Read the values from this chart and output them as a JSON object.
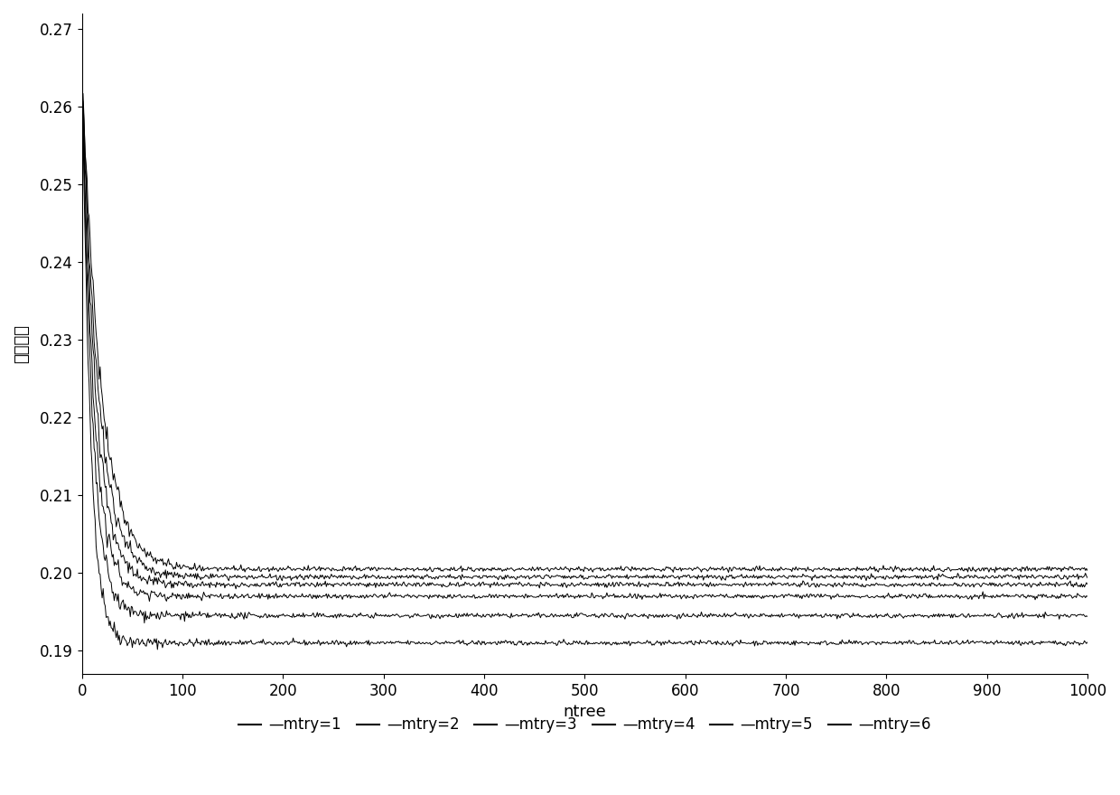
{
  "title": "",
  "xlabel": "ntree",
  "ylabel": "袋外误差",
  "xlim": [
    0,
    1000
  ],
  "ylim": [
    0.187,
    0.272
  ],
  "yticks": [
    0.19,
    0.2,
    0.21,
    0.22,
    0.23,
    0.24,
    0.25,
    0.26,
    0.27
  ],
  "xticks": [
    0,
    100,
    200,
    300,
    400,
    500,
    600,
    700,
    800,
    900,
    1000
  ],
  "line_color": "#000000",
  "background_color": "#ffffff",
  "legend_labels": [
    "mtry=1",
    "mtry=2",
    "mtry=3",
    "mtry=4",
    "mtry=5",
    "mtry=6"
  ],
  "mtry_final_values": [
    0.191,
    0.1945,
    0.197,
    0.1985,
    0.1995,
    0.2005
  ],
  "mtry_start_values": [
    0.2655,
    0.2655,
    0.2655,
    0.2655,
    0.2655,
    0.2655
  ],
  "mtry_decay_rates": [
    0.12,
    0.1,
    0.085,
    0.072,
    0.062,
    0.054
  ],
  "noise_scale_early": 0.0008,
  "noise_scale_late": 0.00015,
  "seed": 42
}
